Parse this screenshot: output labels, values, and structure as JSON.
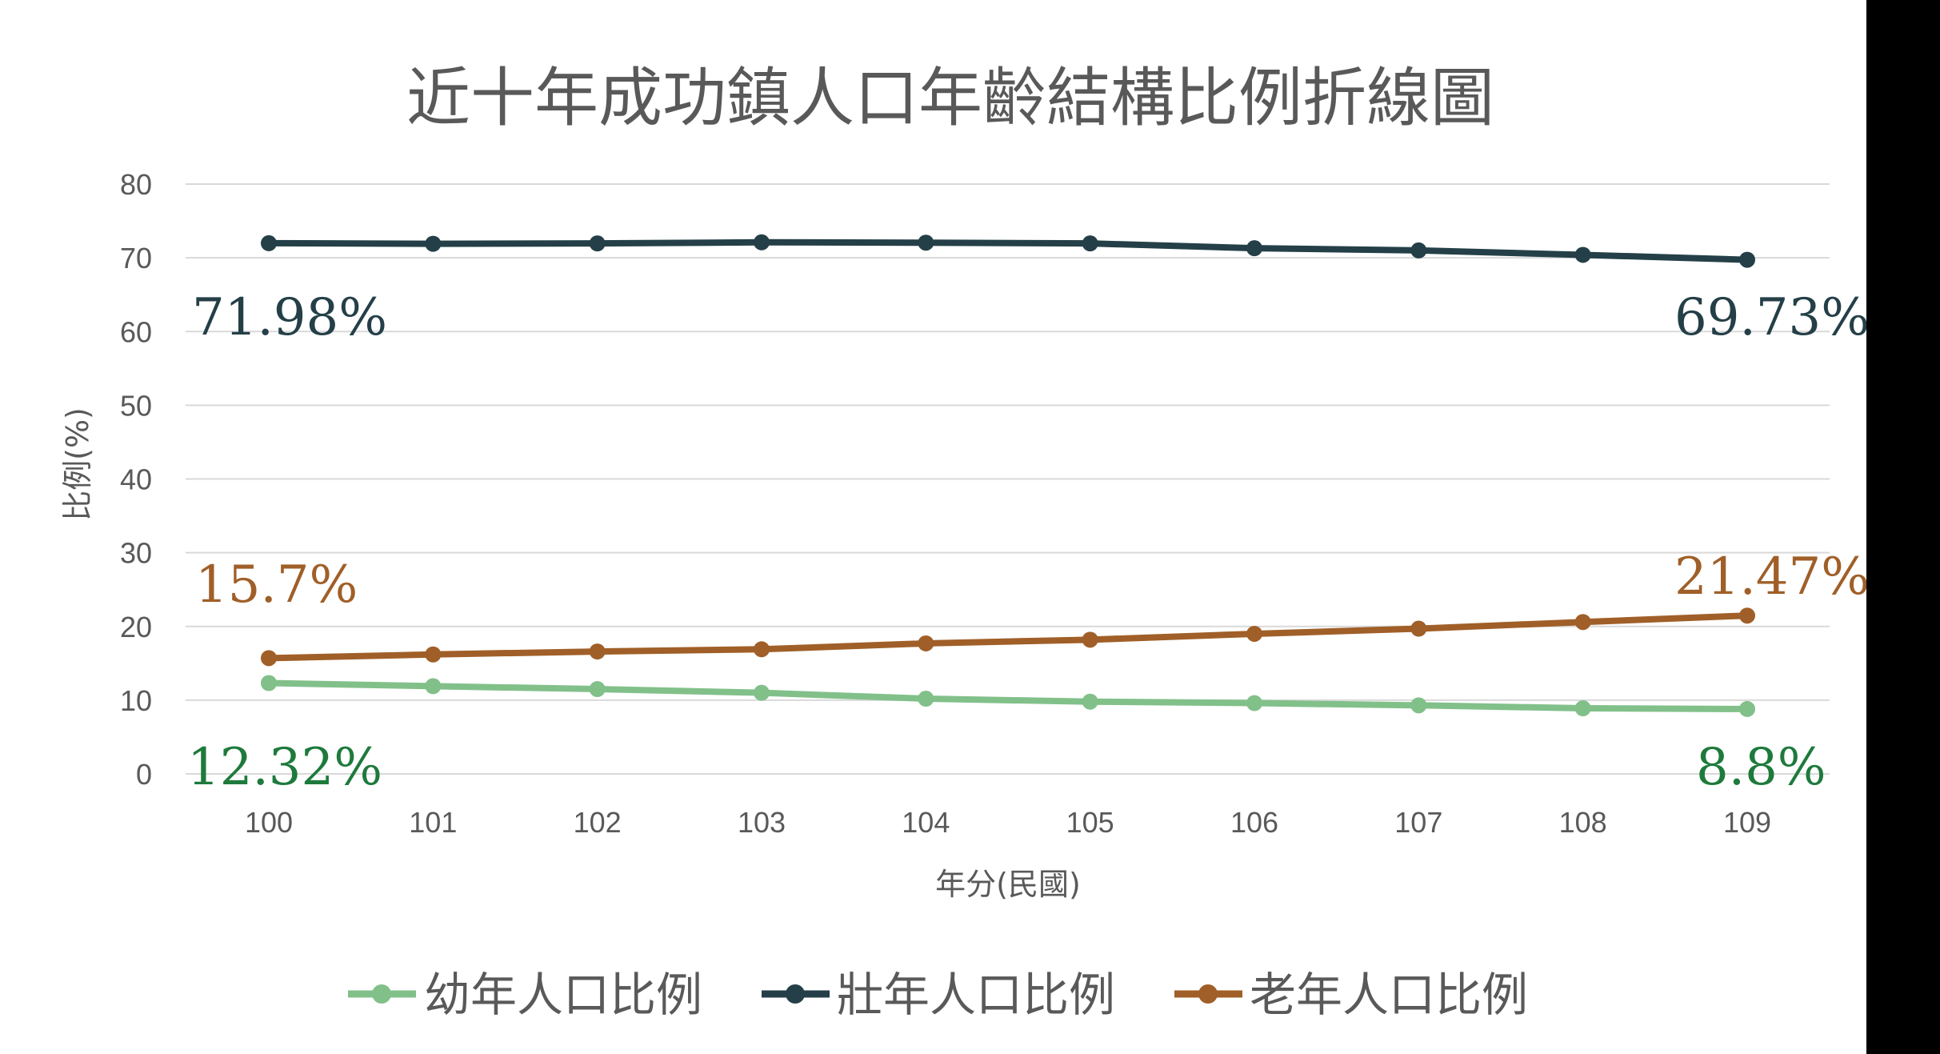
{
  "chart_data": {
    "type": "line",
    "title": "近十年成功鎮人口年齡結構比例折線圖",
    "xlabel": "年分(民國)",
    "ylabel": "比例(%)",
    "categories": [
      "100",
      "101",
      "102",
      "103",
      "104",
      "105",
      "106",
      "107",
      "108",
      "109"
    ],
    "ylim": [
      0,
      80
    ],
    "yticks": [
      "0",
      "10",
      "20",
      "30",
      "40",
      "50",
      "60",
      "70",
      "80"
    ],
    "grid": true,
    "legend_position": "bottom",
    "series": [
      {
        "name": "幼年人口比例",
        "color": "#82c08a",
        "values": [
          12.32,
          11.9,
          11.5,
          11.0,
          10.2,
          9.8,
          9.6,
          9.3,
          8.9,
          8.8
        ]
      },
      {
        "name": "壯年人口比例",
        "color": "#243f47",
        "values": [
          71.98,
          71.9,
          71.95,
          72.1,
          72.05,
          71.95,
          71.3,
          71.0,
          70.4,
          69.73
        ]
      },
      {
        "name": "老年人口比例",
        "color": "#a05f28",
        "values": [
          15.7,
          16.2,
          16.6,
          16.9,
          17.7,
          18.2,
          19.0,
          19.7,
          20.6,
          21.47
        ]
      }
    ],
    "annotations": [
      {
        "text": "71.98%",
        "color": "#243f47"
      },
      {
        "text": "69.73%",
        "color": "#243f47"
      },
      {
        "text": "15.7%",
        "color": "#a05f28"
      },
      {
        "text": "21.47%",
        "color": "#a05f28"
      },
      {
        "text": "12.32%",
        "color": "#1e7a3c"
      },
      {
        "text": "8.8%",
        "color": "#1e7a3c"
      }
    ]
  }
}
